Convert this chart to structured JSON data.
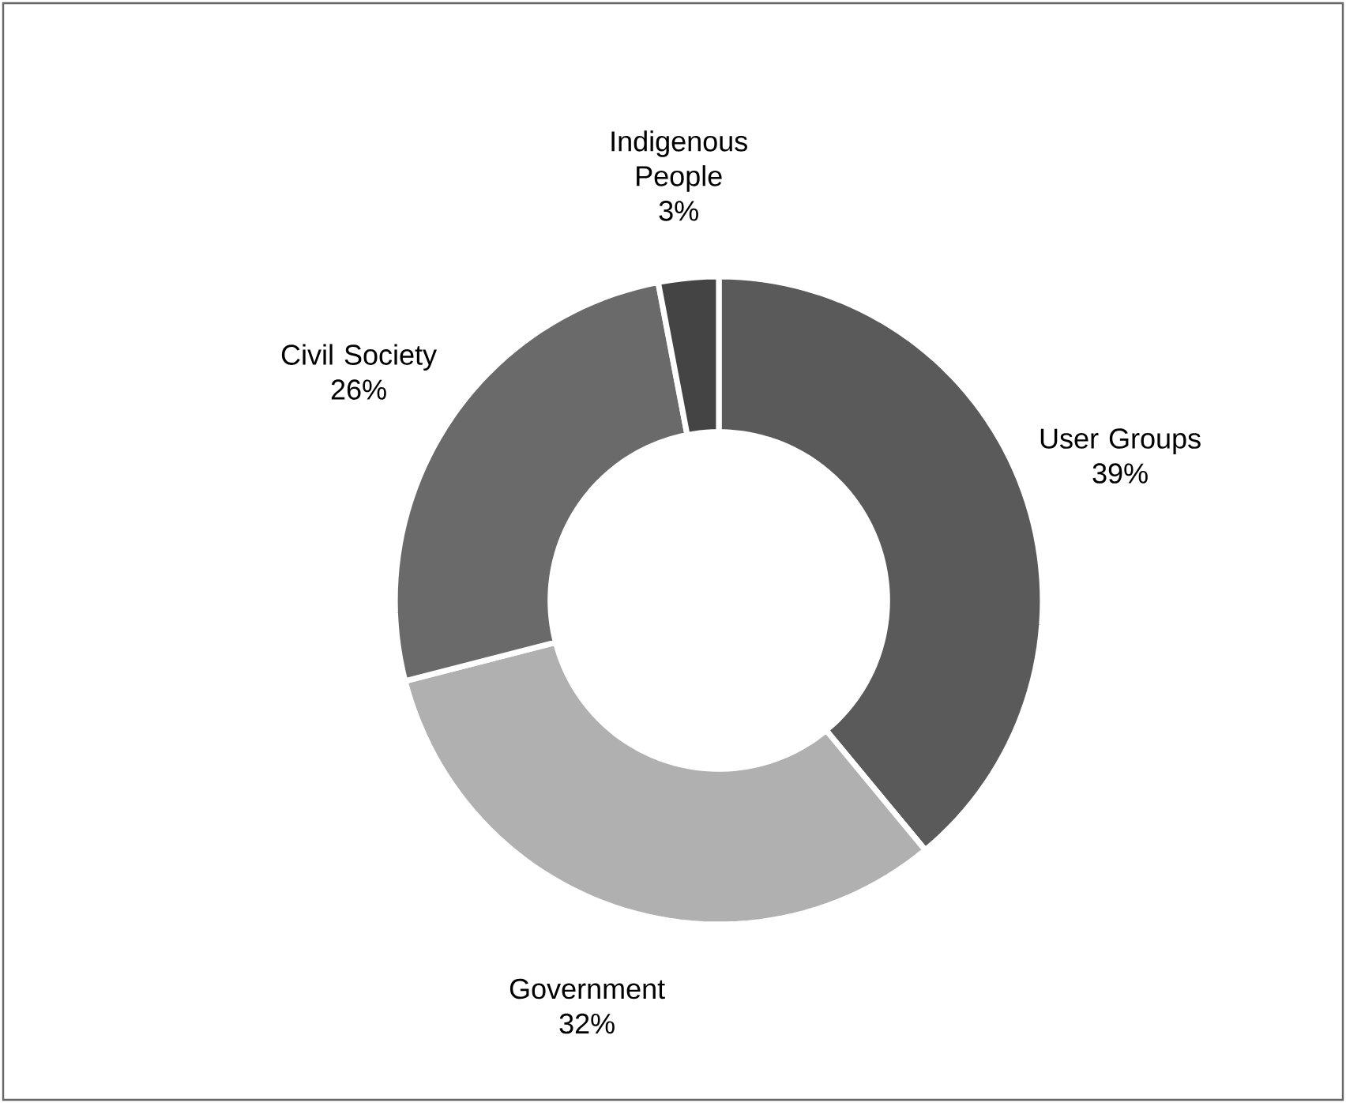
{
  "chart_data": {
    "type": "donut",
    "categories": [
      "User Groups",
      "Government",
      "Civil Society",
      "Indigenous People"
    ],
    "values": [
      39,
      32,
      26,
      3
    ],
    "value_labels": [
      "39%",
      "32%",
      "26%",
      "3%"
    ],
    "colors": [
      "#5a5a5a",
      "#b0b0b0",
      "#6a6a6a",
      "#444444"
    ]
  }
}
